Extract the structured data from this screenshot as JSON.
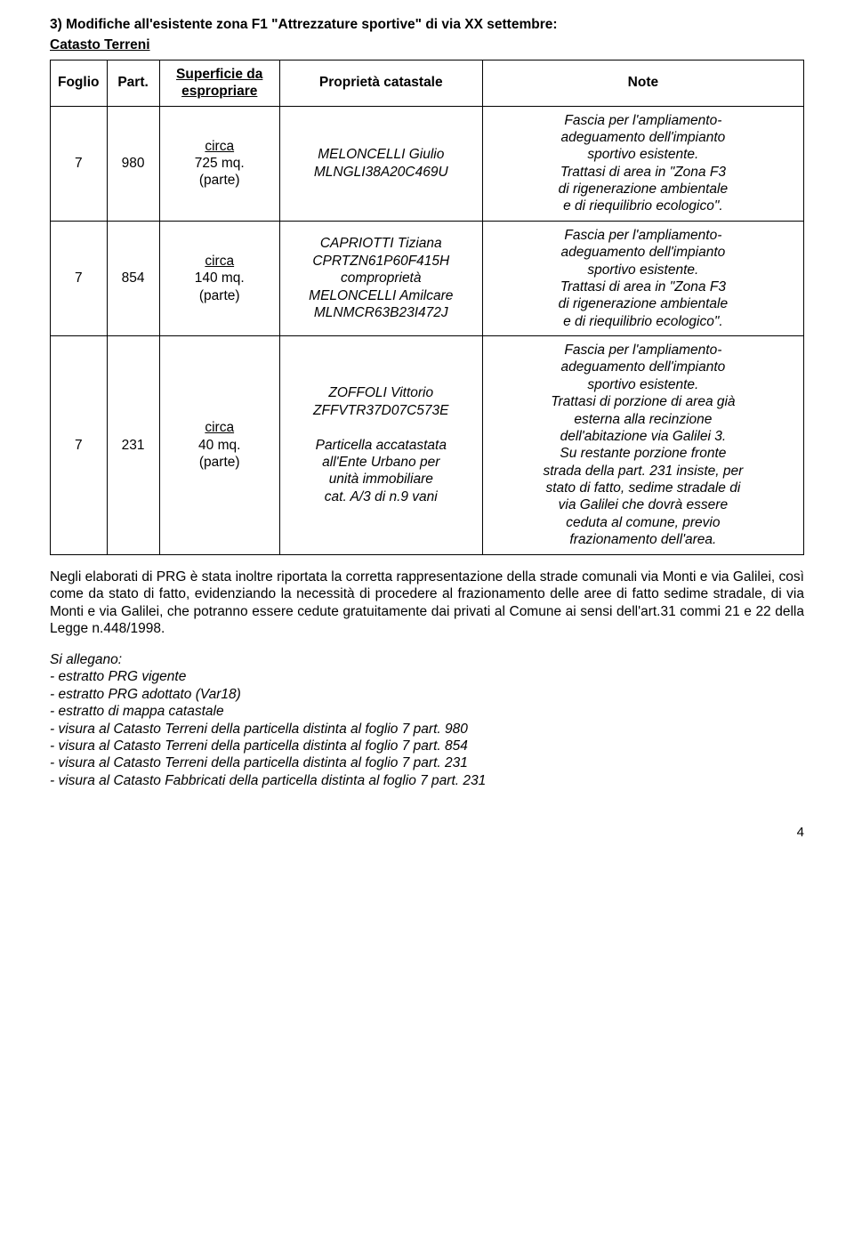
{
  "title": "3)   Modifiche all'esistente zona F1 \"Attrezzature sportive\" di via XX settembre:",
  "subtitle": "Catasto Terreni",
  "table": {
    "headers": {
      "foglio": "Foglio",
      "part": "Part.",
      "sup1": "Superficie da",
      "sup2": "espropriare",
      "prop": "Proprietà catastale",
      "note": "Note"
    },
    "rows": [
      {
        "foglio": "7",
        "part": "980",
        "sup_underlined": "circa",
        "sup_line2": "725 mq.",
        "sup_line3": "(parte)",
        "prop_line1": "MELONCELLI Giulio",
        "prop_line2": "MLNGLI38A20C469U",
        "note_line1": "Fascia per l'ampliamento-",
        "note_line2": "adeguamento dell'impianto",
        "note_line3": "sportivo esistente.",
        "note_line4": "Trattasi di area in \"Zona F3",
        "note_line5": "di rigenerazione ambientale",
        "note_line6": "e di riequilibrio ecologico\"."
      },
      {
        "foglio": "7",
        "part": "854",
        "sup_underlined": "circa",
        "sup_line2": "140 mq.",
        "sup_line3": "(parte)",
        "prop_line1": "CAPRIOTTI Tiziana",
        "prop_line2": "CPRTZN61P60F415H",
        "prop_line3": "comproprietà",
        "prop_line4": "MELONCELLI Amilcare",
        "prop_line5": "MLNMCR63B23I472J",
        "note_line1": "Fascia per l'ampliamento-",
        "note_line2": "adeguamento dell'impianto",
        "note_line3": "sportivo esistente.",
        "note_line4": "Trattasi di area in \"Zona F3",
        "note_line5": "di rigenerazione ambientale",
        "note_line6": "e di riequilibrio ecologico\"."
      },
      {
        "foglio": "7",
        "part": "231",
        "sup_underlined": "circa",
        "sup_line2": "40 mq.",
        "sup_line3": "(parte)",
        "prop_line1": "ZOFFOLI Vittorio",
        "prop_line2": "ZFFVTR37D07C573E",
        "prop_line4": "Particella accatastata",
        "prop_line5": "all'Ente Urbano per",
        "prop_line6": "unità immobiliare",
        "prop_line7": "cat. A/3 di n.9 vani",
        "note_line1": "Fascia per l'ampliamento-",
        "note_line2": "adeguamento dell'impianto",
        "note_line3": "sportivo esistente.",
        "note_line4": "Trattasi di porzione di area già",
        "note_line5": "esterna alla recinzione",
        "note_line6": "dell'abitazione via Galilei 3.",
        "note_line7": "Su restante porzione fronte",
        "note_line8": "strada della part. 231 insiste, per",
        "note_line9": "stato di fatto, sedime stradale di",
        "note_line10": "via Galilei che dovrà essere",
        "note_line11": "ceduta al comune, previo",
        "note_line12": "frazionamento dell'area."
      }
    ]
  },
  "para1": "Negli elaborati di PRG è stata inoltre riportata la corretta rappresentazione della strade comunali via Monti e via Galilei, così come da stato di fatto, evidenziando la necessità di procedere al frazionamento delle aree di fatto sedime stradale, di via Monti e via Galilei, che potranno essere cedute gratuitamente dai privati al Comune ai sensi dell'art.31 commi 21 e 22 della Legge n.448/1998.",
  "allegano_title": "Si allegano:",
  "allegano": [
    "- estratto PRG vigente",
    "- estratto PRG adottato (Var18)",
    "- estratto di mappa catastale",
    "- visura al Catasto Terreni della particella distinta al foglio 7 part. 980",
    "- visura al Catasto Terreni della particella distinta al foglio 7 part. 854",
    "- visura al Catasto Terreni della particella distinta al foglio 7 part. 231",
    "- visura al Catasto Fabbricati della particella distinta al foglio 7 part. 231"
  ],
  "page_number": "4"
}
